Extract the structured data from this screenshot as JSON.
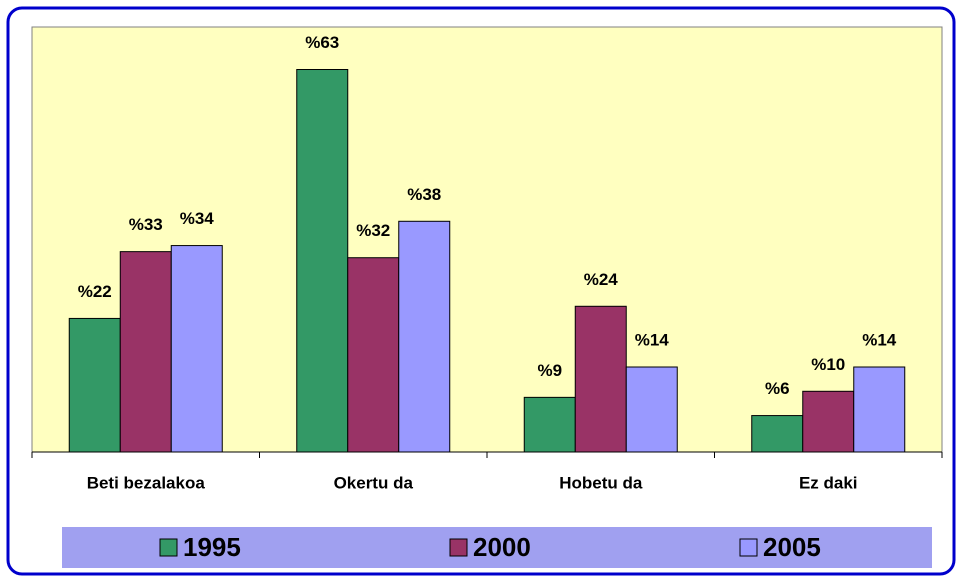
{
  "chart_data": {
    "type": "bar",
    "categories": [
      "Beti bezalakoa",
      "Okertu da",
      "Hobetu da",
      "Ez daki"
    ],
    "series": [
      {
        "name": "1995",
        "color": "#339966",
        "values": [
          22,
          63,
          9,
          6
        ],
        "value_labels": [
          "%22",
          "%63",
          "%9",
          "%6"
        ]
      },
      {
        "name": "2000",
        "color": "#993366",
        "values": [
          33,
          32,
          24,
          10
        ],
        "value_labels": [
          "%33",
          "%32",
          "%24",
          "%10"
        ]
      },
      {
        "name": "2005",
        "color": "#9999ff",
        "values": [
          34,
          38,
          14,
          14
        ],
        "value_labels": [
          "%34",
          "%38",
          "%14",
          "%14"
        ]
      }
    ],
    "ylim": [
      0,
      70
    ],
    "legend": "bottom"
  }
}
